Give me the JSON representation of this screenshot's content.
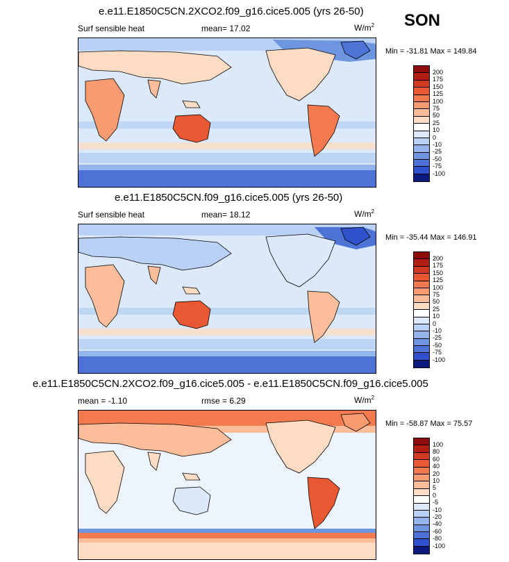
{
  "season": "SON",
  "colors": {
    "pos": [
      "#ffffff",
      "#fde4d2",
      "#fccbad",
      "#f9ab85",
      "#f6875d",
      "#ef6440",
      "#e44529",
      "#c92a1b",
      "#8c0d0c"
    ],
    "neg": [
      "#dbe9fb",
      "#b8d1f4",
      "#93b5ec",
      "#6e95e0",
      "#4d73d6",
      "#2f52cc",
      "#1a33ac",
      "#0c1a7e"
    ]
  },
  "panels": [
    {
      "title": "e.e11.E1850C5CN.2XCO2.f09_g16.cice5.005 (yrs 26-50)",
      "variable": "Surf sensible heat",
      "mean_label": "mean=",
      "mean_value": "17.02",
      "unit": "W/m",
      "unit_sup": "2",
      "minmax": "Min = -31.81 Max = 149.84",
      "levels": [
        "200",
        "175",
        "150",
        "125",
        "100",
        "75",
        "50",
        "25",
        "10",
        "0",
        "-10",
        "-25",
        "-50",
        "-75",
        "-100"
      ],
      "palette": [
        "#8c0d0c",
        "#b01d12",
        "#d13a22",
        "#e85832",
        "#f27a4e",
        "#f89b70",
        "#fbbd9a",
        "#fddcc3",
        "#ffffff",
        "#dbe9fb",
        "#b8d1f4",
        "#93b5ec",
        "#6e95e0",
        "#4d73d6",
        "#2f52cc",
        "#0c1a7e"
      ]
    },
    {
      "title": "e.e11.E1850C5CN.f09_g16.cice5.005 (yrs 26-50)",
      "variable": "Surf sensible heat",
      "mean_label": "mean=",
      "mean_value": "18.12",
      "unit": "W/m",
      "unit_sup": "2",
      "minmax": "Min = -35.44 Max = 146.91",
      "levels": [
        "200",
        "175",
        "150",
        "125",
        "100",
        "75",
        "50",
        "25",
        "10",
        "0",
        "-10",
        "-25",
        "-50",
        "-75",
        "-100"
      ],
      "palette": [
        "#8c0d0c",
        "#b01d12",
        "#d13a22",
        "#e85832",
        "#f27a4e",
        "#f89b70",
        "#fbbd9a",
        "#fddcc3",
        "#ffffff",
        "#dbe9fb",
        "#b8d1f4",
        "#93b5ec",
        "#6e95e0",
        "#4d73d6",
        "#2f52cc",
        "#0c1a7e"
      ]
    },
    {
      "title": "e.e11.E1850C5CN.2XCO2.f09_g16.cice5.005 - e.e11.E1850C5CN.f09_g16.cice5.005",
      "mean_label": "mean =",
      "mean_value": "-1.10",
      "rmse_label": "rmse =",
      "rmse_value": "6.29",
      "unit": "W/m",
      "unit_sup": "2",
      "minmax": "Min = -58.87 Max = 75.57",
      "levels": [
        "100",
        "80",
        "60",
        "40",
        "20",
        "10",
        "5",
        "0",
        "-5",
        "-10",
        "-20",
        "-40",
        "-60",
        "-80",
        "-100"
      ],
      "palette": [
        "#8c0d0c",
        "#b01d12",
        "#d13a22",
        "#e85832",
        "#f27a4e",
        "#f89b70",
        "#fbbd9a",
        "#fddcc3",
        "#ffffff",
        "#dbe9fb",
        "#b8d1f4",
        "#93b5ec",
        "#6e95e0",
        "#4d73d6",
        "#2f52cc",
        "#0c1a7e"
      ]
    }
  ],
  "chart_data": [
    {
      "type": "heatmap",
      "title": "e.e11.E1850C5CN.2XCO2.f09_g16.cice5.005 (yrs 26-50)",
      "variable": "Surf sensible heat",
      "units": "W/m2",
      "mean": 17.02,
      "min": -31.81,
      "max": 149.84,
      "contour_levels": [
        -100,
        -75,
        -50,
        -25,
        -10,
        0,
        10,
        25,
        50,
        75,
        100,
        125,
        150,
        175,
        200
      ]
    },
    {
      "type": "heatmap",
      "title": "e.e11.E1850C5CN.f09_g16.cice5.005 (yrs 26-50)",
      "variable": "Surf sensible heat",
      "units": "W/m2",
      "mean": 18.12,
      "min": -35.44,
      "max": 146.91,
      "contour_levels": [
        -100,
        -75,
        -50,
        -25,
        -10,
        0,
        10,
        25,
        50,
        75,
        100,
        125,
        150,
        175,
        200
      ]
    },
    {
      "type": "heatmap",
      "title": "e.e11.E1850C5CN.2XCO2.f09_g16.cice5.005 - e.e11.E1850C5CN.f09_g16.cice5.005",
      "units": "W/m2",
      "mean": -1.1,
      "rmse": 6.29,
      "min": -58.87,
      "max": 75.57,
      "contour_levels": [
        -100,
        -80,
        -60,
        -40,
        -20,
        -10,
        -5,
        0,
        5,
        10,
        20,
        40,
        60,
        80,
        100
      ]
    }
  ]
}
